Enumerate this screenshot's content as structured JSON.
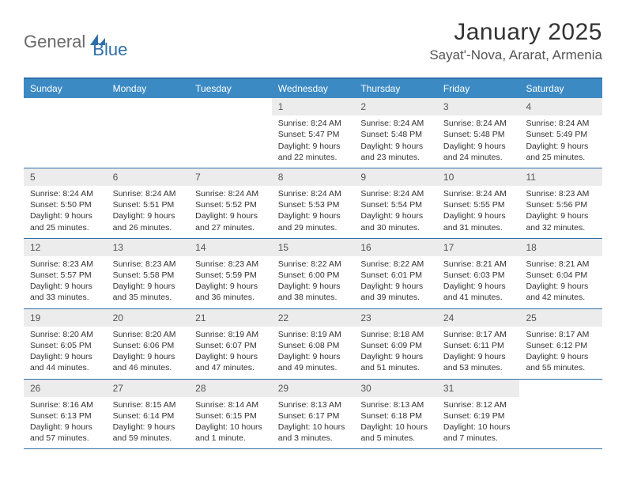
{
  "logo": {
    "part1": "General",
    "part2": "Blue"
  },
  "title": "January 2025",
  "location": "Sayat'-Nova, Ararat, Armenia",
  "colors": {
    "header_bg": "#3b8ac4",
    "border": "#2f6fa8",
    "daynum_bg": "#ececec",
    "text": "#333333"
  },
  "day_labels": [
    "Sunday",
    "Monday",
    "Tuesday",
    "Wednesday",
    "Thursday",
    "Friday",
    "Saturday"
  ],
  "weeks": [
    [
      {
        "n": "",
        "empty": true
      },
      {
        "n": "",
        "empty": true
      },
      {
        "n": "",
        "empty": true
      },
      {
        "n": "1",
        "sr": "8:24 AM",
        "ss": "5:47 PM",
        "dh": "9",
        "dm": "22"
      },
      {
        "n": "2",
        "sr": "8:24 AM",
        "ss": "5:48 PM",
        "dh": "9",
        "dm": "23"
      },
      {
        "n": "3",
        "sr": "8:24 AM",
        "ss": "5:48 PM",
        "dh": "9",
        "dm": "24"
      },
      {
        "n": "4",
        "sr": "8:24 AM",
        "ss": "5:49 PM",
        "dh": "9",
        "dm": "25"
      }
    ],
    [
      {
        "n": "5",
        "sr": "8:24 AM",
        "ss": "5:50 PM",
        "dh": "9",
        "dm": "25"
      },
      {
        "n": "6",
        "sr": "8:24 AM",
        "ss": "5:51 PM",
        "dh": "9",
        "dm": "26"
      },
      {
        "n": "7",
        "sr": "8:24 AM",
        "ss": "5:52 PM",
        "dh": "9",
        "dm": "27"
      },
      {
        "n": "8",
        "sr": "8:24 AM",
        "ss": "5:53 PM",
        "dh": "9",
        "dm": "29"
      },
      {
        "n": "9",
        "sr": "8:24 AM",
        "ss": "5:54 PM",
        "dh": "9",
        "dm": "30"
      },
      {
        "n": "10",
        "sr": "8:24 AM",
        "ss": "5:55 PM",
        "dh": "9",
        "dm": "31"
      },
      {
        "n": "11",
        "sr": "8:23 AM",
        "ss": "5:56 PM",
        "dh": "9",
        "dm": "32"
      }
    ],
    [
      {
        "n": "12",
        "sr": "8:23 AM",
        "ss": "5:57 PM",
        "dh": "9",
        "dm": "33"
      },
      {
        "n": "13",
        "sr": "8:23 AM",
        "ss": "5:58 PM",
        "dh": "9",
        "dm": "35"
      },
      {
        "n": "14",
        "sr": "8:23 AM",
        "ss": "5:59 PM",
        "dh": "9",
        "dm": "36"
      },
      {
        "n": "15",
        "sr": "8:22 AM",
        "ss": "6:00 PM",
        "dh": "9",
        "dm": "38"
      },
      {
        "n": "16",
        "sr": "8:22 AM",
        "ss": "6:01 PM",
        "dh": "9",
        "dm": "39"
      },
      {
        "n": "17",
        "sr": "8:21 AM",
        "ss": "6:03 PM",
        "dh": "9",
        "dm": "41"
      },
      {
        "n": "18",
        "sr": "8:21 AM",
        "ss": "6:04 PM",
        "dh": "9",
        "dm": "42"
      }
    ],
    [
      {
        "n": "19",
        "sr": "8:20 AM",
        "ss": "6:05 PM",
        "dh": "9",
        "dm": "44"
      },
      {
        "n": "20",
        "sr": "8:20 AM",
        "ss": "6:06 PM",
        "dh": "9",
        "dm": "46"
      },
      {
        "n": "21",
        "sr": "8:19 AM",
        "ss": "6:07 PM",
        "dh": "9",
        "dm": "47"
      },
      {
        "n": "22",
        "sr": "8:19 AM",
        "ss": "6:08 PM",
        "dh": "9",
        "dm": "49"
      },
      {
        "n": "23",
        "sr": "8:18 AM",
        "ss": "6:09 PM",
        "dh": "9",
        "dm": "51"
      },
      {
        "n": "24",
        "sr": "8:17 AM",
        "ss": "6:11 PM",
        "dh": "9",
        "dm": "53"
      },
      {
        "n": "25",
        "sr": "8:17 AM",
        "ss": "6:12 PM",
        "dh": "9",
        "dm": "55"
      }
    ],
    [
      {
        "n": "26",
        "sr": "8:16 AM",
        "ss": "6:13 PM",
        "dh": "9",
        "dm": "57"
      },
      {
        "n": "27",
        "sr": "8:15 AM",
        "ss": "6:14 PM",
        "dh": "9",
        "dm": "59"
      },
      {
        "n": "28",
        "sr": "8:14 AM",
        "ss": "6:15 PM",
        "dh": "10",
        "dm": "1",
        "dm_label": "minute"
      },
      {
        "n": "29",
        "sr": "8:13 AM",
        "ss": "6:17 PM",
        "dh": "10",
        "dm": "3"
      },
      {
        "n": "30",
        "sr": "8:13 AM",
        "ss": "6:18 PM",
        "dh": "10",
        "dm": "5"
      },
      {
        "n": "31",
        "sr": "8:12 AM",
        "ss": "6:19 PM",
        "dh": "10",
        "dm": "7"
      },
      {
        "n": "",
        "empty": true
      }
    ]
  ]
}
